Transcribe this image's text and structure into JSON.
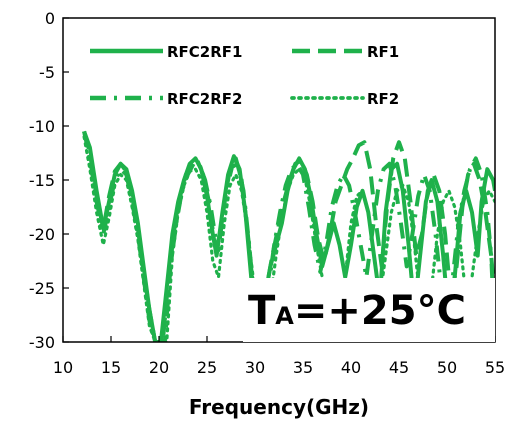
{
  "chart_data": {
    "type": "line",
    "title": "",
    "xlabel": "Frequency(GHz)",
    "ylabel": "",
    "xlim": [
      10,
      55
    ],
    "ylim": [
      -30,
      0
    ],
    "xticks": [
      10,
      15,
      20,
      25,
      30,
      35,
      40,
      45,
      50,
      55
    ],
    "yticks": [
      0,
      -5,
      -10,
      -15,
      -20,
      -25,
      -30
    ],
    "grid": false,
    "legend_position": "top",
    "line_color": "#1fb14b",
    "annotation": {
      "main": "T",
      "sub": "A",
      "rest": "=+25°C"
    },
    "series": [
      {
        "name": "RFC2RF1",
        "style": "solid",
        "points": [
          [
            12.2,
            -10.5
          ],
          [
            12.8,
            -12
          ],
          [
            13.5,
            -16
          ],
          [
            14.2,
            -19.5
          ],
          [
            14.8,
            -17
          ],
          [
            15.4,
            -14.5
          ],
          [
            16.0,
            -13.5
          ],
          [
            16.6,
            -14
          ],
          [
            17.2,
            -16
          ],
          [
            17.8,
            -19
          ],
          [
            18.4,
            -23
          ],
          [
            19.0,
            -27
          ],
          [
            19.6,
            -30
          ],
          [
            20.2,
            -30
          ],
          [
            20.8,
            -25
          ],
          [
            21.4,
            -20
          ],
          [
            22.0,
            -17
          ],
          [
            22.6,
            -15
          ],
          [
            23.2,
            -13.5
          ],
          [
            23.8,
            -13
          ],
          [
            24.4,
            -14
          ],
          [
            25.0,
            -16.5
          ],
          [
            25.6,
            -20
          ],
          [
            26.0,
            -22
          ],
          [
            26.6,
            -18
          ],
          [
            27.2,
            -14.5
          ],
          [
            27.8,
            -12.8
          ],
          [
            28.4,
            -14
          ],
          [
            29.0,
            -18
          ],
          [
            29.6,
            -24
          ],
          [
            30.0,
            -30
          ],
          [
            30.5,
            -30
          ],
          [
            31.0,
            -26
          ],
          [
            31.6,
            -23
          ],
          [
            32.2,
            -21
          ],
          [
            32.8,
            -19
          ],
          [
            33.4,
            -16
          ],
          [
            34.0,
            -14
          ],
          [
            34.6,
            -13
          ],
          [
            35.2,
            -14
          ],
          [
            35.8,
            -16.5
          ],
          [
            36.4,
            -20
          ],
          [
            37.0,
            -23
          ],
          [
            37.6,
            -21
          ],
          [
            38.2,
            -19
          ],
          [
            38.8,
            -21
          ],
          [
            39.4,
            -24
          ],
          [
            40.0,
            -21
          ],
          [
            40.6,
            -17.5
          ],
          [
            41.2,
            -16
          ],
          [
            41.8,
            -18
          ],
          [
            42.4,
            -22
          ],
          [
            43.0,
            -26
          ],
          [
            43.6,
            -18
          ],
          [
            44.2,
            -14
          ],
          [
            44.8,
            -13.5
          ],
          [
            45.4,
            -16
          ],
          [
            46.0,
            -21
          ],
          [
            46.6,
            -27
          ],
          [
            47.2,
            -22
          ],
          [
            47.8,
            -17
          ],
          [
            48.4,
            -15
          ],
          [
            49.0,
            -17
          ],
          [
            49.6,
            -22
          ],
          [
            50.2,
            -28
          ],
          [
            50.8,
            -24
          ],
          [
            51.4,
            -18
          ],
          [
            52.0,
            -16
          ],
          [
            52.6,
            -18
          ],
          [
            53.2,
            -22
          ],
          [
            53.6,
            -17
          ],
          [
            54.2,
            -14
          ],
          [
            54.8,
            -15
          ],
          [
            55.0,
            -16
          ]
        ]
      },
      {
        "name": "RF1",
        "style": "dashed",
        "points": [
          [
            12.2,
            -10.5
          ],
          [
            12.8,
            -12.5
          ],
          [
            13.5,
            -16.5
          ],
          [
            14.2,
            -19.5
          ],
          [
            14.8,
            -16.5
          ],
          [
            15.4,
            -14.2
          ],
          [
            16.0,
            -13.5
          ],
          [
            16.6,
            -14.2
          ],
          [
            17.2,
            -16.5
          ],
          [
            17.8,
            -19.5
          ],
          [
            18.4,
            -23.5
          ],
          [
            19.0,
            -27
          ],
          [
            19.6,
            -30
          ],
          [
            20.4,
            -30
          ],
          [
            21.0,
            -24
          ],
          [
            21.6,
            -19.5
          ],
          [
            22.2,
            -16.5
          ],
          [
            22.8,
            -14.5
          ],
          [
            23.4,
            -13.5
          ],
          [
            24.0,
            -13.2
          ],
          [
            24.6,
            -14.5
          ],
          [
            25.2,
            -17
          ],
          [
            25.8,
            -21
          ],
          [
            26.2,
            -21.5
          ],
          [
            26.8,
            -17
          ],
          [
            27.4,
            -14
          ],
          [
            28.0,
            -13
          ],
          [
            28.6,
            -15
          ],
          [
            29.2,
            -19.5
          ],
          [
            29.8,
            -25
          ],
          [
            30.2,
            -30
          ],
          [
            30.8,
            -30
          ],
          [
            31.2,
            -25
          ],
          [
            31.8,
            -22
          ],
          [
            32.4,
            -19.5
          ],
          [
            33.0,
            -17
          ],
          [
            33.6,
            -15
          ],
          [
            34.2,
            -13.5
          ],
          [
            34.8,
            -13.2
          ],
          [
            35.4,
            -14.5
          ],
          [
            36.0,
            -17
          ],
          [
            36.6,
            -20.5
          ],
          [
            37.2,
            -22.5
          ],
          [
            37.8,
            -20
          ],
          [
            38.4,
            -17
          ],
          [
            39.0,
            -15.5
          ],
          [
            39.6,
            -14
          ],
          [
            40.2,
            -13
          ],
          [
            40.8,
            -11.8
          ],
          [
            41.4,
            -11.5
          ],
          [
            42.0,
            -14
          ],
          [
            42.6,
            -19
          ],
          [
            43.2,
            -23
          ],
          [
            43.8,
            -17
          ],
          [
            44.4,
            -13
          ],
          [
            45.0,
            -11.5
          ],
          [
            45.6,
            -13
          ],
          [
            46.2,
            -17
          ],
          [
            46.8,
            -22
          ],
          [
            47.4,
            -20
          ],
          [
            48.0,
            -16
          ],
          [
            48.6,
            -14.5
          ],
          [
            49.2,
            -16
          ],
          [
            49.8,
            -20
          ],
          [
            50.4,
            -26
          ],
          [
            51.0,
            -23
          ],
          [
            51.6,
            -17.5
          ],
          [
            52.2,
            -14.5
          ],
          [
            52.8,
            -13.5
          ],
          [
            53.4,
            -15
          ],
          [
            54.0,
            -18
          ],
          [
            54.6,
            -22
          ],
          [
            55.0,
            -30
          ]
        ]
      },
      {
        "name": "RFC2RF2",
        "style": "dashdot",
        "points": [
          [
            12.2,
            -10.5
          ],
          [
            12.8,
            -13
          ],
          [
            13.5,
            -17
          ],
          [
            14.2,
            -20
          ],
          [
            14.8,
            -17.5
          ],
          [
            15.4,
            -15
          ],
          [
            16.0,
            -14
          ],
          [
            16.6,
            -14.5
          ],
          [
            17.2,
            -17
          ],
          [
            17.8,
            -20
          ],
          [
            18.4,
            -24
          ],
          [
            19.0,
            -28
          ],
          [
            19.6,
            -30
          ],
          [
            20.6,
            -30
          ],
          [
            21.2,
            -23
          ],
          [
            21.8,
            -19
          ],
          [
            22.4,
            -16
          ],
          [
            23.0,
            -14.5
          ],
          [
            23.6,
            -13.5
          ],
          [
            24.2,
            -13.5
          ],
          [
            24.8,
            -15
          ],
          [
            25.4,
            -17.5
          ],
          [
            26.0,
            -21
          ],
          [
            26.4,
            -20
          ],
          [
            27.0,
            -16
          ],
          [
            27.6,
            -13.8
          ],
          [
            28.2,
            -13.5
          ],
          [
            28.8,
            -16
          ],
          [
            29.4,
            -21
          ],
          [
            30.0,
            -27
          ],
          [
            30.4,
            -30
          ],
          [
            31.0,
            -29
          ],
          [
            31.4,
            -25
          ],
          [
            32.0,
            -21
          ],
          [
            32.6,
            -18
          ],
          [
            33.2,
            -15.5
          ],
          [
            33.8,
            -14
          ],
          [
            34.4,
            -13.5
          ],
          [
            35.0,
            -14.5
          ],
          [
            35.6,
            -17.5
          ],
          [
            36.2,
            -21
          ],
          [
            36.8,
            -23.5
          ],
          [
            37.4,
            -21
          ],
          [
            38.0,
            -17.5
          ],
          [
            38.6,
            -15.5
          ],
          [
            39.2,
            -14.5
          ],
          [
            39.8,
            -15.5
          ],
          [
            40.4,
            -18
          ],
          [
            41.0,
            -21
          ],
          [
            41.6,
            -24
          ],
          [
            42.2,
            -20
          ],
          [
            42.8,
            -16
          ],
          [
            43.4,
            -14
          ],
          [
            44.0,
            -13.5
          ],
          [
            44.6,
            -15.5
          ],
          [
            45.2,
            -19
          ],
          [
            45.8,
            -23
          ],
          [
            46.4,
            -20
          ],
          [
            47.0,
            -16.5
          ],
          [
            47.6,
            -14.5
          ],
          [
            48.2,
            -16
          ],
          [
            48.8,
            -20
          ],
          [
            49.4,
            -25
          ],
          [
            50.0,
            -30
          ],
          [
            50.6,
            -24
          ],
          [
            51.2,
            -19
          ],
          [
            51.8,
            -16
          ],
          [
            52.4,
            -14
          ],
          [
            53.0,
            -13
          ],
          [
            53.6,
            -14.5
          ],
          [
            54.2,
            -18
          ],
          [
            54.8,
            -24
          ],
          [
            55.0,
            -27
          ]
        ]
      },
      {
        "name": "RF2",
        "style": "dotted",
        "points": [
          [
            12.2,
            -11
          ],
          [
            12.8,
            -14
          ],
          [
            13.5,
            -18
          ],
          [
            14.2,
            -21
          ],
          [
            14.8,
            -18.5
          ],
          [
            15.4,
            -15.5
          ],
          [
            16.0,
            -14.5
          ],
          [
            16.6,
            -15
          ],
          [
            17.2,
            -17.5
          ],
          [
            17.8,
            -20.5
          ],
          [
            18.4,
            -24.5
          ],
          [
            19.0,
            -28.5
          ],
          [
            19.6,
            -30
          ],
          [
            20.8,
            -30
          ],
          [
            21.4,
            -22
          ],
          [
            22.0,
            -18
          ],
          [
            22.6,
            -15.5
          ],
          [
            23.2,
            -14.2
          ],
          [
            23.8,
            -14
          ],
          [
            24.4,
            -15
          ],
          [
            25.0,
            -18
          ],
          [
            25.6,
            -22.5
          ],
          [
            26.2,
            -24
          ],
          [
            26.8,
            -19
          ],
          [
            27.4,
            -15.5
          ],
          [
            28.0,
            -14.5
          ],
          [
            28.6,
            -16
          ],
          [
            29.2,
            -19.5
          ],
          [
            29.8,
            -24
          ],
          [
            30.4,
            -28
          ],
          [
            31.0,
            -30
          ],
          [
            31.6,
            -26
          ],
          [
            32.2,
            -22
          ],
          [
            32.8,
            -18.5
          ],
          [
            33.4,
            -16
          ],
          [
            34.0,
            -14.5
          ],
          [
            34.6,
            -14
          ],
          [
            35.2,
            -14.8
          ],
          [
            35.8,
            -17.5
          ],
          [
            36.4,
            -21
          ],
          [
            37.0,
            -24
          ],
          [
            37.6,
            -27
          ],
          [
            38.2,
            -30
          ],
          [
            38.8,
            -30
          ],
          [
            39.4,
            -24
          ],
          [
            40.0,
            -19
          ],
          [
            40.6,
            -16.5
          ],
          [
            41.2,
            -16
          ],
          [
            41.8,
            -18
          ],
          [
            42.4,
            -22
          ],
          [
            43.0,
            -26
          ],
          [
            43.6,
            -22
          ],
          [
            44.2,
            -18
          ],
          [
            44.8,
            -16
          ],
          [
            45.4,
            -15.5
          ],
          [
            46.0,
            -17
          ],
          [
            46.6,
            -21
          ],
          [
            47.2,
            -26
          ],
          [
            47.8,
            -30
          ],
          [
            48.4,
            -25
          ],
          [
            49.0,
            -20
          ],
          [
            49.6,
            -17
          ],
          [
            50.2,
            -16
          ],
          [
            50.8,
            -17.5
          ],
          [
            51.4,
            -21
          ],
          [
            52.0,
            -26
          ],
          [
            52.6,
            -24
          ],
          [
            53.2,
            -20
          ],
          [
            53.8,
            -17
          ],
          [
            54.4,
            -16
          ],
          [
            55.0,
            -17
          ]
        ]
      }
    ]
  }
}
